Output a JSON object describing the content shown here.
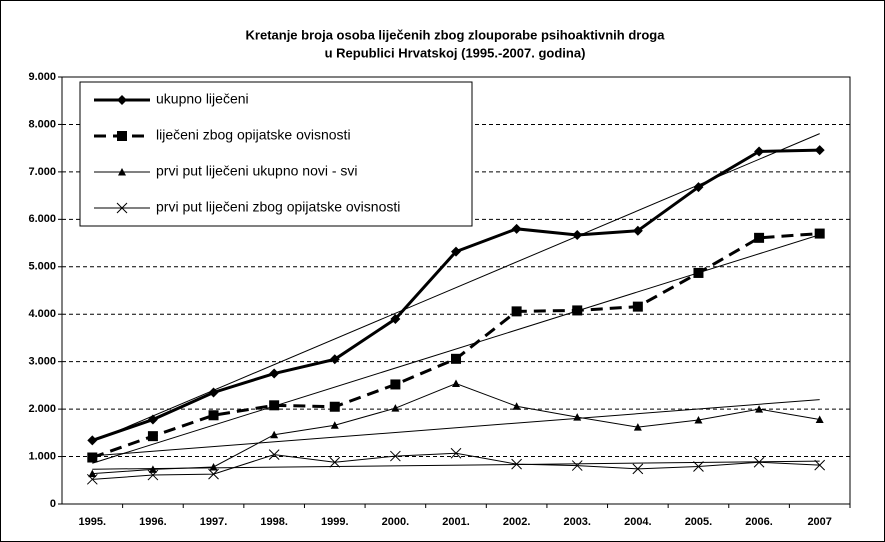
{
  "chart_data": {
    "type": "line",
    "title": [
      "Kretanje broja osoba liječenih zbog zlouporabe psihoaktivnih droga",
      "u Republici Hrvatskoj (1995.-2007. godina)"
    ],
    "categories": [
      "1995.",
      "1996.",
      "1997.",
      "1998.",
      "1999.",
      "2000.",
      "2001.",
      "2002.",
      "2003.",
      "2004.",
      "2005.",
      "2006.",
      "2007"
    ],
    "series": [
      {
        "name": "ukupno liječeni",
        "color": "#000000",
        "marker": "diamond",
        "line_width": 3,
        "dash": false,
        "values": [
          1340,
          1780,
          2350,
          2750,
          3050,
          3900,
          5320,
          5800,
          5670,
          5760,
          6680,
          7430,
          7460
        ]
      },
      {
        "name": "liječeni zbog opijatske ovisnosti",
        "color": "#000000",
        "marker": "square",
        "line_width": 3,
        "dash": true,
        "values": [
          980,
          1430,
          1870,
          2080,
          2050,
          2520,
          3060,
          4060,
          4080,
          4160,
          4870,
          5610,
          5700
        ]
      },
      {
        "name": "prvi put liječeni ukupno novi - svi",
        "color": "#000000",
        "marker": "triangle",
        "line_width": 1,
        "dash": false,
        "values": [
          640,
          730,
          780,
          1460,
          1660,
          2020,
          2540,
          2060,
          1830,
          1620,
          1770,
          2000,
          1780
        ]
      },
      {
        "name": "prvi put liječeni zbog opijatske ovisnosti",
        "color": "#000000",
        "marker": "x",
        "line_width": 1,
        "dash": false,
        "values": [
          520,
          610,
          630,
          1040,
          880,
          1010,
          1070,
          840,
          810,
          740,
          790,
          880,
          820
        ]
      }
    ],
    "trendlines": true,
    "ylim": [
      0,
      9000
    ],
    "yticks": [
      0,
      {
        "value": 1000,
        "label": "1.000"
      },
      {
        "value": 2000,
        "label": "2.000"
      },
      {
        "value": 3000,
        "label": "3.000"
      },
      {
        "value": 4000,
        "label": "4.000"
      },
      {
        "value": 5000,
        "label": "5.000"
      },
      {
        "value": 6000,
        "label": "6.000"
      },
      {
        "value": 7000,
        "label": "7.000"
      },
      {
        "value": 8000,
        "label": "8.000"
      },
      {
        "value": 9000,
        "label": "9.000"
      }
    ],
    "grid": true,
    "legend": "upper left"
  }
}
